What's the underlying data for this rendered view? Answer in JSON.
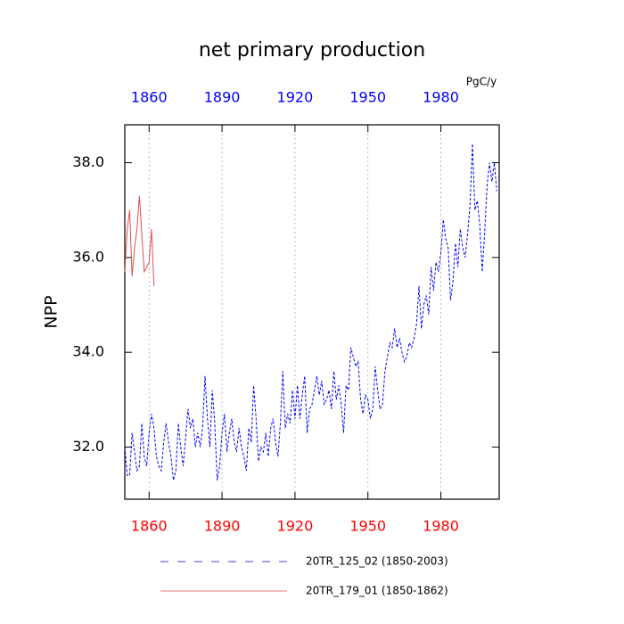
{
  "chart_data": {
    "type": "line",
    "title": "net primary production",
    "ylabel": "NPP",
    "units_label": "PgC/y",
    "xlim": [
      1850,
      2004
    ],
    "ylim": [
      30.9,
      38.8
    ],
    "xticks": [
      1860,
      1890,
      1920,
      1950,
      1980
    ],
    "yticks": [
      {
        "value": 32,
        "label": "32.0"
      },
      {
        "value": 34,
        "label": "34.0"
      },
      {
        "value": 36,
        "label": "36.0"
      },
      {
        "value": 38,
        "label": "38.0"
      }
    ],
    "grid": true,
    "top_axis_color": "#0000ff",
    "bottom_axis_color": "#ff0000",
    "series": [
      {
        "name": "20TR_125_02 (1850-2003)",
        "color": "#0000ff",
        "line_style": "dashed",
        "x": [
          1850,
          1851,
          1852,
          1853,
          1854,
          1855,
          1856,
          1857,
          1858,
          1859,
          1860,
          1861,
          1862,
          1863,
          1864,
          1865,
          1866,
          1867,
          1868,
          1869,
          1870,
          1871,
          1872,
          1873,
          1874,
          1875,
          1876,
          1877,
          1878,
          1879,
          1880,
          1881,
          1882,
          1883,
          1884,
          1885,
          1886,
          1887,
          1888,
          1889,
          1890,
          1891,
          1892,
          1893,
          1894,
          1895,
          1896,
          1897,
          1898,
          1899,
          1900,
          1901,
          1902,
          1903,
          1904,
          1905,
          1906,
          1907,
          1908,
          1909,
          1910,
          1911,
          1912,
          1913,
          1914,
          1915,
          1916,
          1917,
          1918,
          1919,
          1920,
          1921,
          1922,
          1923,
          1924,
          1925,
          1926,
          1927,
          1928,
          1929,
          1930,
          1931,
          1932,
          1933,
          1934,
          1935,
          1936,
          1937,
          1938,
          1939,
          1940,
          1941,
          1942,
          1943,
          1944,
          1945,
          1946,
          1947,
          1948,
          1949,
          1950,
          1951,
          1952,
          1953,
          1954,
          1955,
          1956,
          1957,
          1958,
          1959,
          1960,
          1961,
          1962,
          1963,
          1964,
          1965,
          1966,
          1967,
          1968,
          1969,
          1970,
          1971,
          1972,
          1973,
          1974,
          1975,
          1976,
          1977,
          1978,
          1979,
          1980,
          1981,
          1982,
          1983,
          1984,
          1985,
          1986,
          1987,
          1988,
          1989,
          1990,
          1991,
          1992,
          1993,
          1994,
          1995,
          1996,
          1997,
          1998,
          1999,
          2000,
          2001,
          2002,
          2003
        ],
        "values": [
          32.0,
          31.4,
          31.4,
          32.3,
          31.9,
          31.5,
          31.6,
          32.5,
          31.8,
          31.6,
          32.3,
          32.7,
          32.4,
          31.8,
          31.6,
          31.5,
          32.1,
          32.5,
          32.1,
          31.8,
          31.3,
          31.5,
          32.5,
          32.0,
          31.6,
          32.2,
          32.8,
          32.4,
          32.6,
          32.0,
          32.3,
          32.0,
          32.4,
          33.5,
          32.6,
          32.0,
          33.2,
          32.5,
          31.3,
          31.6,
          32.3,
          32.7,
          31.9,
          32.3,
          32.6,
          32.1,
          31.9,
          32.4,
          32.0,
          31.8,
          31.5,
          32.4,
          32.1,
          33.3,
          32.6,
          31.7,
          32.0,
          31.9,
          32.3,
          31.8,
          32.4,
          32.6,
          32.1,
          31.8,
          32.5,
          33.6,
          32.4,
          32.7,
          32.5,
          33.2,
          32.6,
          33.3,
          32.6,
          33.1,
          33.5,
          32.3,
          32.8,
          32.9,
          33.2,
          33.5,
          33.1,
          33.4,
          32.9,
          33.0,
          33.2,
          32.8,
          33.6,
          33.0,
          33.3,
          32.9,
          32.3,
          33.3,
          33.2,
          34.1,
          33.9,
          33.7,
          33.8,
          33.0,
          32.7,
          33.1,
          33.0,
          32.6,
          32.8,
          33.7,
          33.2,
          32.8,
          32.9,
          33.6,
          33.9,
          34.2,
          34.1,
          34.5,
          34.1,
          34.3,
          34.0,
          33.8,
          33.9,
          34.2,
          34.1,
          34.3,
          34.6,
          35.4,
          34.5,
          35.0,
          35.2,
          34.8,
          35.8,
          35.3,
          35.9,
          35.7,
          36.1,
          36.8,
          36.4,
          36.2,
          35.1,
          35.5,
          36.3,
          35.8,
          36.6,
          36.2,
          36.0,
          36.5,
          37.1,
          38.4,
          37.0,
          37.2,
          36.7,
          35.7,
          36.5,
          37.5,
          38.0,
          37.6,
          38.0,
          37.4
        ]
      },
      {
        "name": "20TR_179_01 (1850-1862)",
        "color": "#e05050",
        "line_style": "solid",
        "x": [
          1850,
          1851,
          1852,
          1853,
          1854,
          1855,
          1856,
          1857,
          1858,
          1859,
          1860,
          1861,
          1862
        ],
        "values": [
          35.7,
          36.6,
          37.0,
          35.6,
          36.2,
          36.6,
          37.3,
          36.5,
          35.7,
          35.8,
          35.9,
          36.6,
          35.4
        ]
      }
    ]
  }
}
